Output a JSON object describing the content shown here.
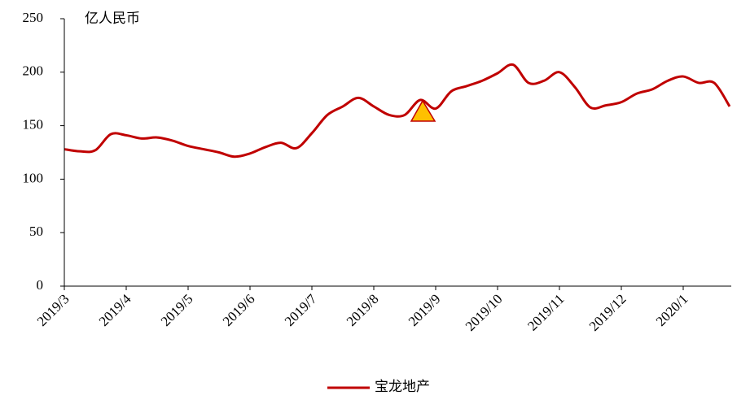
{
  "chart_data": {
    "type": "line",
    "y_unit_label": "亿人民币",
    "categories": [
      "2019/3",
      null,
      null,
      null,
      "2019/4",
      null,
      null,
      null,
      "2019/5",
      null,
      null,
      null,
      "2019/6",
      null,
      null,
      null,
      "2019/7",
      null,
      null,
      null,
      "2019/8",
      null,
      null,
      null,
      "2019/9",
      null,
      null,
      null,
      "2019/10",
      null,
      null,
      null,
      "2019/11",
      null,
      null,
      null,
      "2019/12",
      null,
      null,
      null,
      "2020/1",
      null,
      null,
      null
    ],
    "series": [
      {
        "name": "宝龙地产",
        "color": "#c00000",
        "values": [
          128,
          126,
          127,
          142,
          141,
          138,
          139,
          136,
          131,
          128,
          125,
          121,
          124,
          130,
          134,
          129,
          143,
          160,
          168,
          176,
          168,
          160,
          160,
          174,
          166,
          182,
          187,
          192,
          199,
          207,
          190,
          192,
          200,
          186,
          167,
          169,
          172,
          180,
          184,
          192,
          196,
          190,
          190,
          168
        ]
      }
    ],
    "ylim": [
      0,
      250
    ],
    "yticks": [
      0,
      50,
      100,
      150,
      200,
      250
    ],
    "grid": false,
    "legend": "bottom"
  }
}
